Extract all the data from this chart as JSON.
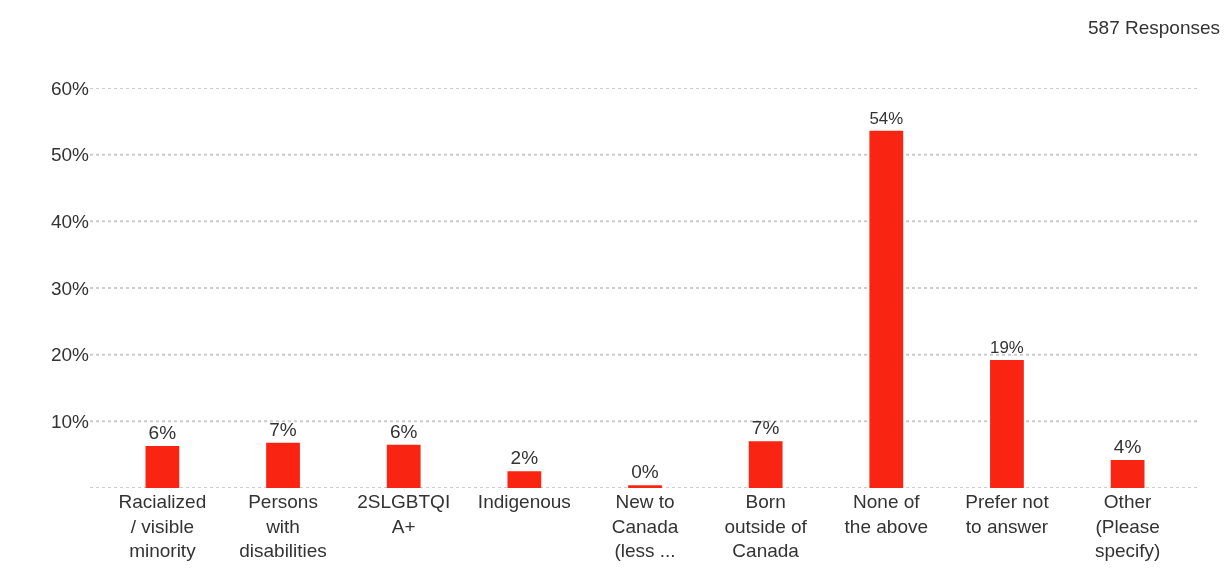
{
  "chart_data": {
    "type": "bar",
    "categories": [
      "Racialized\n/ visible\nminority",
      "Persons\nwith\ndisabilities",
      "2SLGBTQI\nA+",
      "Indigenous",
      "New to\nCanada\n(less ...",
      "Born\noutside of\nCanada",
      "None of\nthe above",
      "Prefer not\nto answer",
      "Other\n(Please\nspecify)"
    ],
    "values": [
      6.3,
      6.8,
      6.5,
      2.5,
      0.4,
      7,
      53.6,
      19.2,
      4.2
    ],
    "value_labels": [
      "6%",
      "7%",
      "6%",
      "2%",
      "0%",
      "7%",
      "54%",
      "19%",
      "4%"
    ],
    "color": "#f92512",
    "ylim": [
      0,
      60
    ],
    "yticks": [
      {
        "value": 0,
        "label": null
      },
      {
        "value": 10,
        "label": "10%"
      },
      {
        "value": 20,
        "label": "20%"
      },
      {
        "value": 30,
        "label": "30%"
      },
      {
        "value": 40,
        "label": "40%"
      },
      {
        "value": 50,
        "label": "50%"
      },
      {
        "value": 60,
        "label": "60%"
      }
    ],
    "grid": "y",
    "annotations": [
      "587 Responses"
    ]
  }
}
